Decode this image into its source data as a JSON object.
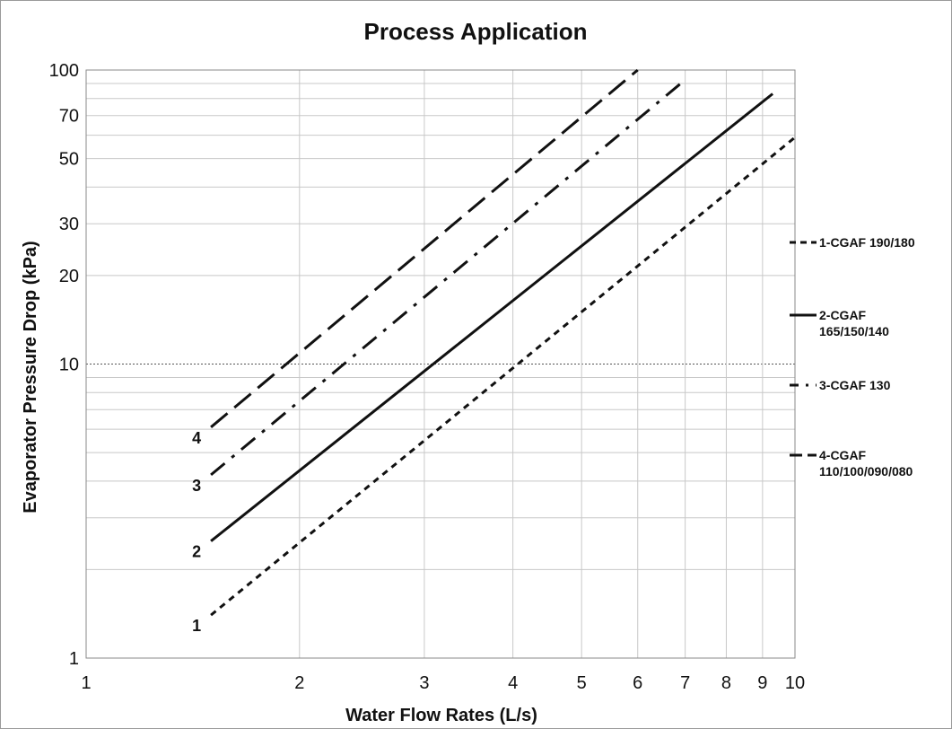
{
  "chart_data": {
    "type": "line",
    "title": "Process Application",
    "xlabel": "Water Flow Rates (L/s)",
    "ylabel": "Evaporator Pressure Drop (kPa)",
    "xscale": "log",
    "yscale": "log",
    "xlim": [
      1,
      10
    ],
    "ylim": [
      1,
      100
    ],
    "grid": true,
    "legend_position": "right",
    "x_ticks": [
      1,
      2,
      3,
      4,
      5,
      6,
      7,
      8,
      9,
      10
    ],
    "x_tick_labels": [
      "1",
      "2",
      "3",
      "4",
      "5",
      "6",
      "7",
      "8",
      "9",
      "10"
    ],
    "y_ticks": [
      1,
      10,
      20,
      30,
      50,
      70,
      100
    ],
    "y_tick_labels": [
      "1",
      "10",
      "20",
      "30",
      "50",
      "70",
      "100"
    ],
    "series": [
      {
        "name": "1-CGAF 190/180",
        "curve_label": "1",
        "style": "dashed",
        "x": [
          1.5,
          10.0
        ],
        "y": [
          1.4,
          59
        ]
      },
      {
        "name": "2-CGAF 165/150/140",
        "curve_label": "2",
        "style": "solid",
        "x": [
          1.5,
          9.3
        ],
        "y": [
          2.5,
          83
        ]
      },
      {
        "name": "3-CGAF 130",
        "curve_label": "3",
        "style": "dash-dot",
        "x": [
          1.5,
          6.9
        ],
        "y": [
          4.2,
          90
        ]
      },
      {
        "name": "4-CGAF 110/100/090/080",
        "curve_label": "4",
        "style": "long-dash",
        "x": [
          1.5,
          6.0
        ],
        "y": [
          6.1,
          100
        ]
      }
    ]
  }
}
